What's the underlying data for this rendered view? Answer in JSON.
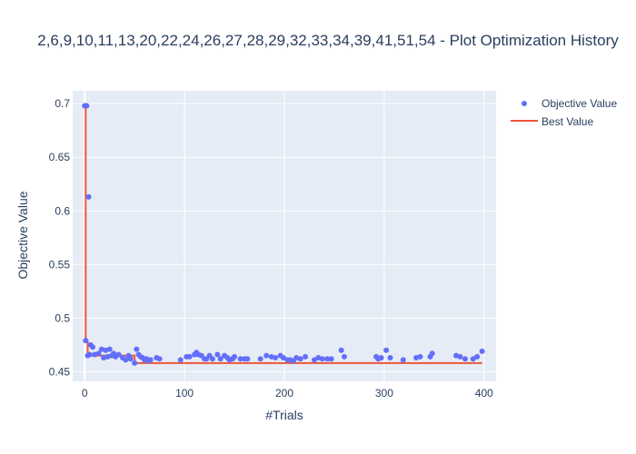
{
  "chart_data": {
    "type": "scatter",
    "title": "2,6,9,10,11,13,20,22,24,26,27,28,29,32,33,34,39,41,51,54 - Plot Optimization History",
    "xlabel": "#Trials",
    "ylabel": "Objective Value",
    "xlim": [
      -12,
      412
    ],
    "ylim": [
      0.441,
      0.712
    ],
    "x_ticks": [
      0,
      100,
      200,
      300,
      400
    ],
    "x_tick_labels": [
      "0",
      "100",
      "200",
      "300",
      "400"
    ],
    "y_ticks": [
      0.45,
      0.5,
      0.55,
      0.6,
      0.65,
      0.7
    ],
    "y_tick_labels": [
      "0.45",
      "0.5",
      "0.55",
      "0.6",
      "0.65",
      "0.7"
    ],
    "grid": true,
    "legend_position": "top-right",
    "series": [
      {
        "name": "Objective Value",
        "mode": "markers",
        "color": "#636efa",
        "x": [
          0,
          1,
          2,
          3,
          4,
          5,
          6,
          8,
          10,
          14,
          17,
          19,
          21,
          23,
          25,
          27,
          29,
          31,
          34,
          38,
          41,
          44,
          46,
          50,
          52,
          54,
          56,
          58,
          60,
          62,
          64,
          66,
          72,
          75,
          96,
          102,
          105,
          110,
          112,
          114,
          117,
          120,
          122,
          125,
          128,
          133,
          136,
          140,
          143,
          145,
          148,
          150,
          156,
          160,
          163,
          176,
          182,
          187,
          191,
          196,
          199,
          203,
          206,
          209,
          212,
          216,
          221,
          230,
          234,
          238,
          243,
          247,
          257,
          260,
          292,
          294,
          297,
          302,
          306,
          319,
          332,
          336,
          346,
          348,
          372,
          376,
          381,
          389,
          393,
          398
        ],
        "y": [
          0.698,
          0.479,
          0.698,
          0.465,
          0.613,
          0.466,
          0.475,
          0.473,
          0.466,
          0.467,
          0.471,
          0.463,
          0.47,
          0.464,
          0.471,
          0.465,
          0.467,
          0.464,
          0.466,
          0.463,
          0.461,
          0.465,
          0.462,
          0.458,
          0.471,
          0.466,
          0.464,
          0.463,
          0.461,
          0.462,
          0.46,
          0.461,
          0.463,
          0.462,
          0.461,
          0.464,
          0.464,
          0.466,
          0.468,
          0.466,
          0.465,
          0.462,
          0.462,
          0.465,
          0.462,
          0.466,
          0.462,
          0.465,
          0.463,
          0.461,
          0.462,
          0.464,
          0.462,
          0.462,
          0.462,
          0.462,
          0.465,
          0.464,
          0.463,
          0.465,
          0.463,
          0.461,
          0.461,
          0.46,
          0.463,
          0.462,
          0.464,
          0.461,
          0.463,
          0.462,
          0.462,
          0.462,
          0.47,
          0.464,
          0.464,
          0.462,
          0.463,
          0.47,
          0.463,
          0.461,
          0.463,
          0.464,
          0.464,
          0.467,
          0.465,
          0.464,
          0.462,
          0.462,
          0.464,
          0.469
        ]
      },
      {
        "name": "Best Value",
        "mode": "lines",
        "color": "#ef553b",
        "x": [
          0,
          1,
          3,
          50,
          398
        ],
        "y": [
          0.698,
          0.479,
          0.465,
          0.458,
          0.458
        ]
      }
    ]
  }
}
